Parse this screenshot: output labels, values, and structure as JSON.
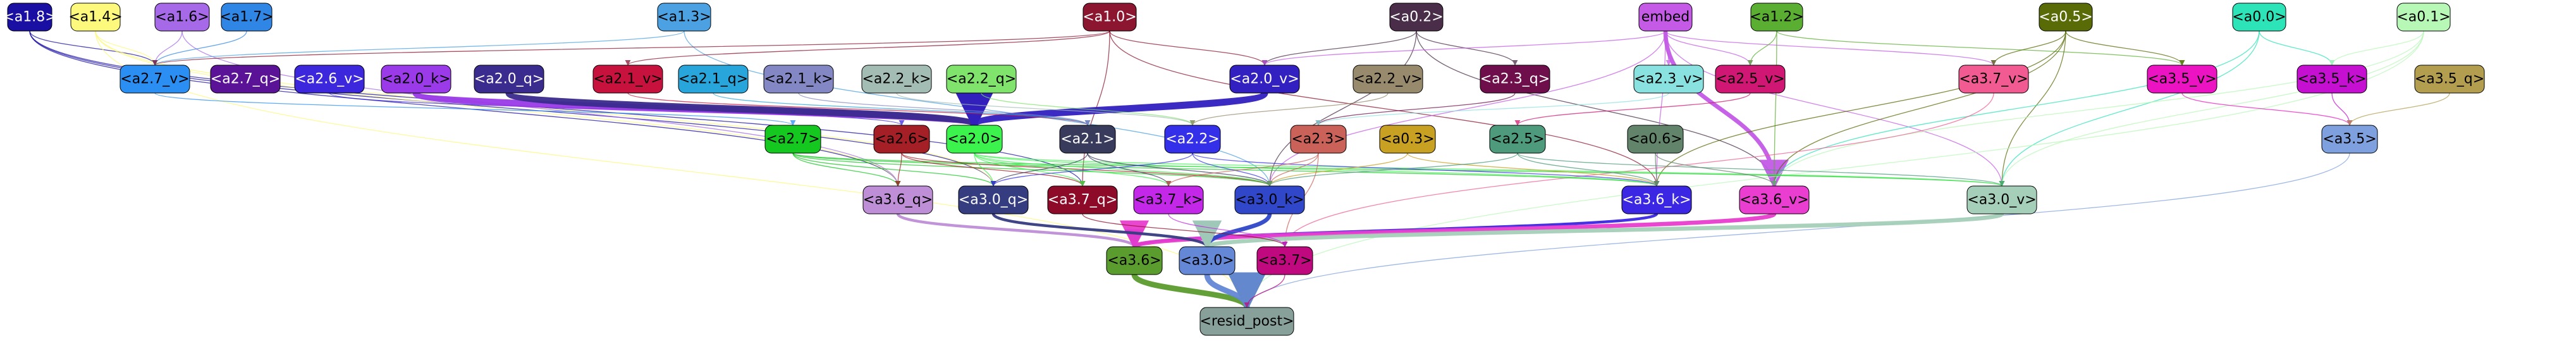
{
  "nodes": [
    {
      "id": "a1_8",
      "label": "<a1.8>",
      "fill": "#1a0fa3",
      "text": "#ffffff"
    },
    {
      "id": "a1_4",
      "label": "<a1.4>",
      "fill": "#fdf97c",
      "text": "#000000"
    },
    {
      "id": "a1_6",
      "label": "<a1.6>",
      "fill": "#a66ae8",
      "text": "#000000"
    },
    {
      "id": "a1_7",
      "label": "<a1.7>",
      "fill": "#2f86e4",
      "text": "#000000"
    },
    {
      "id": "a1_3",
      "label": "<a1.3>",
      "fill": "#4ba1e1",
      "text": "#000000"
    },
    {
      "id": "a1_0",
      "label": "<a1.0>",
      "fill": "#8c1530",
      "text": "#ffffff"
    },
    {
      "id": "a0_2",
      "label": "<a0.2>",
      "fill": "#4a2e49",
      "text": "#ffffff"
    },
    {
      "id": "embed",
      "label": "embed",
      "fill": "#c45ae6",
      "text": "#000000"
    },
    {
      "id": "a1_2",
      "label": "<a1.2>",
      "fill": "#5aae31",
      "text": "#000000"
    },
    {
      "id": "a0_5",
      "label": "<a0.5>",
      "fill": "#596b07",
      "text": "#ffffff"
    },
    {
      "id": "a0_0",
      "label": "<a0.0>",
      "fill": "#2ce4b8",
      "text": "#000000"
    },
    {
      "id": "a0_1",
      "label": "<a0.1>",
      "fill": "#b7f8b6",
      "text": "#000000"
    },
    {
      "id": "a2_7_v",
      "label": "<a2.7_v>",
      "fill": "#2a8ef2",
      "text": "#000000"
    },
    {
      "id": "a2_7_q",
      "label": "<a2.7_q>",
      "fill": "#5a1396",
      "text": "#ffffff"
    },
    {
      "id": "a2_6_v",
      "label": "<a2.6_v>",
      "fill": "#3c27dd",
      "text": "#ffffff"
    },
    {
      "id": "a2_0_k",
      "label": "<a2.0_k>",
      "fill": "#9a3ae8",
      "text": "#000000"
    },
    {
      "id": "a2_0_q",
      "label": "<a2.0_q>",
      "fill": "#3a2b8e",
      "text": "#ffffff"
    },
    {
      "id": "a2_1_v",
      "label": "<a2.1_v>",
      "fill": "#c8123e",
      "text": "#000000"
    },
    {
      "id": "a2_1_q",
      "label": "<a2.1_q>",
      "fill": "#28a6dc",
      "text": "#000000"
    },
    {
      "id": "a2_1_k",
      "label": "<a2.1_k>",
      "fill": "#8388c4",
      "text": "#000000"
    },
    {
      "id": "a2_2_k",
      "label": "<a2.2_k>",
      "fill": "#a3bdb5",
      "text": "#000000"
    },
    {
      "id": "a2_2_q",
      "label": "<a2.2_q>",
      "fill": "#7fe36c",
      "text": "#000000"
    },
    {
      "id": "a2_0_v",
      "label": "<a2.0_v>",
      "fill": "#3220c0",
      "text": "#ffffff"
    },
    {
      "id": "a2_2_v",
      "label": "<a2.2_v>",
      "fill": "#988a6c",
      "text": "#000000"
    },
    {
      "id": "a2_3_q",
      "label": "<a2.3_q>",
      "fill": "#6e0e4a",
      "text": "#ffffff"
    },
    {
      "id": "a2_3_v",
      "label": "<a2.3_v>",
      "fill": "#8ae2e0",
      "text": "#000000"
    },
    {
      "id": "a2_5_v",
      "label": "<a2.5_v>",
      "fill": "#d01774",
      "text": "#000000"
    },
    {
      "id": "a3_7_v",
      "label": "<a3.7_v>",
      "fill": "#f15b92",
      "text": "#000000"
    },
    {
      "id": "a3_5_v",
      "label": "<a3.5_v>",
      "fill": "#ec14c2",
      "text": "#000000"
    },
    {
      "id": "a3_5_k",
      "label": "<a3.5_k>",
      "fill": "#c510d1",
      "text": "#000000"
    },
    {
      "id": "a3_5_q",
      "label": "<a3.5_q>",
      "fill": "#b39e50",
      "text": "#000000"
    },
    {
      "id": "a2_7",
      "label": "<a2.7>",
      "fill": "#15c820",
      "text": "#000000"
    },
    {
      "id": "a2_6",
      "label": "<a2.6>",
      "fill": "#a51f26",
      "text": "#000000"
    },
    {
      "id": "a2_0",
      "label": "<a2.0>",
      "fill": "#3cf34e",
      "text": "#000000"
    },
    {
      "id": "a2_1",
      "label": "<a2.1>",
      "fill": "#393b5d",
      "text": "#ffffff"
    },
    {
      "id": "a2_2",
      "label": "<a2.2>",
      "fill": "#3430ea",
      "text": "#ffffff"
    },
    {
      "id": "a2_3",
      "label": "<a2.3>",
      "fill": "#cb625a",
      "text": "#000000"
    },
    {
      "id": "a0_3",
      "label": "<a0.3>",
      "fill": "#c9a122",
      "text": "#000000"
    },
    {
      "id": "a2_5",
      "label": "<a2.5>",
      "fill": "#4d9a7c",
      "text": "#000000"
    },
    {
      "id": "a0_6",
      "label": "<a0.6>",
      "fill": "#61846a",
      "text": "#000000"
    },
    {
      "id": "a3_5",
      "label": "<a3.5>",
      "fill": "#7fa0de",
      "text": "#000000"
    },
    {
      "id": "a3_6_q",
      "label": "<a3.6_q>",
      "fill": "#be8ed6",
      "text": "#000000"
    },
    {
      "id": "a3_0_q",
      "label": "<a3.0_q>",
      "fill": "#353c80",
      "text": "#ffffff"
    },
    {
      "id": "a3_7_q",
      "label": "<a3.7_q>",
      "fill": "#8e0a29",
      "text": "#ffffff"
    },
    {
      "id": "a3_7_k",
      "label": "<a3.7_k>",
      "fill": "#c328e8",
      "text": "#000000"
    },
    {
      "id": "a3_0_k",
      "label": "<a3.0_k>",
      "fill": "#2f47c8",
      "text": "#000000"
    },
    {
      "id": "a3_6_k",
      "label": "<a3.6_k>",
      "fill": "#3b27e3",
      "text": "#ffffff"
    },
    {
      "id": "a3_6_v",
      "label": "<a3.6_v>",
      "fill": "#e93ecf",
      "text": "#000000"
    },
    {
      "id": "a3_0_v",
      "label": "<a3.0_v>",
      "fill": "#a5cfb9",
      "text": "#000000"
    },
    {
      "id": "a3_6",
      "label": "<a3.6>",
      "fill": "#5b9c2e",
      "text": "#000000"
    },
    {
      "id": "a3_0",
      "label": "<a3.0>",
      "fill": "#6487d6",
      "text": "#000000"
    },
    {
      "id": "a3_7",
      "label": "<a3.7>",
      "fill": "#c0097f",
      "text": "#000000"
    },
    {
      "id": "resid_post",
      "label": "<resid_post>",
      "fill": "#87a19a",
      "text": "#000000"
    }
  ],
  "edges": [
    {
      "from": "a1_8",
      "to": "a2_7_v",
      "color": "#1a0fa3",
      "weight": 1
    },
    {
      "from": "a1_8",
      "to": "a3_6_q",
      "color": "#1a0fa3",
      "weight": 1
    },
    {
      "from": "a1_8",
      "to": "a3_0_q",
      "color": "#1a0fa3",
      "weight": 1
    },
    {
      "from": "a1_8",
      "to": "a3_7_q",
      "color": "#1a0fa3",
      "weight": 1
    },
    {
      "from": "a1_4",
      "to": "a2_7_v",
      "color": "#fdf97c",
      "weight": 1
    },
    {
      "from": "a1_4",
      "to": "a3_6_q",
      "color": "#fdf97c",
      "weight": 1
    },
    {
      "from": "a1_4",
      "to": "a3_0_q",
      "color": "#fdf97c",
      "weight": 1
    },
    {
      "from": "a1_4",
      "to": "resid_post",
      "color": "#fdf97c",
      "weight": 1
    },
    {
      "from": "a1_6",
      "to": "a2_7_v",
      "color": "#a66ae8",
      "weight": 1
    },
    {
      "from": "a1_6",
      "to": "a3_6_q",
      "color": "#a66ae8",
      "weight": 1
    },
    {
      "from": "a1_7",
      "to": "a2_7_v",
      "color": "#2f86e4",
      "weight": 1
    },
    {
      "from": "a1_3",
      "to": "a2_7_v",
      "color": "#4ba1e1",
      "weight": 1
    },
    {
      "from": "a1_3",
      "to": "a3_0_k",
      "color": "#4ba1e1",
      "weight": 1
    },
    {
      "from": "a1_0",
      "to": "a2_7_v",
      "color": "#8c1530",
      "weight": 1
    },
    {
      "from": "a1_0",
      "to": "a2_1_v",
      "color": "#8c1530",
      "weight": 1
    },
    {
      "from": "a1_0",
      "to": "a2_0_v",
      "color": "#8c1530",
      "weight": 1
    },
    {
      "from": "a1_0",
      "to": "a3_7_q",
      "color": "#8c1530",
      "weight": 1
    },
    {
      "from": "a1_0",
      "to": "a3_6_k",
      "color": "#8c1530",
      "weight": 1
    },
    {
      "from": "a0_2",
      "to": "a2_0_v",
      "color": "#4a2e49",
      "weight": 1
    },
    {
      "from": "a0_2",
      "to": "a2_3_q",
      "color": "#4a2e49",
      "weight": 1
    },
    {
      "from": "a0_2",
      "to": "a3_6_v",
      "color": "#4a2e49",
      "weight": 1
    },
    {
      "from": "a0_2",
      "to": "a3_0_k",
      "color": "#4a2e49",
      "weight": 1
    },
    {
      "from": "embed",
      "to": "a2_0_v",
      "color": "#c45ae6",
      "weight": 1
    },
    {
      "from": "embed",
      "to": "a2_3_v",
      "color": "#c45ae6",
      "weight": 1
    },
    {
      "from": "embed",
      "to": "a2_5_v",
      "color": "#c45ae6",
      "weight": 1
    },
    {
      "from": "embed",
      "to": "a3_7_v",
      "color": "#c45ae6",
      "weight": 1
    },
    {
      "from": "embed",
      "to": "a3_6_v",
      "color": "#c45ae6",
      "weight": 3
    },
    {
      "from": "embed",
      "to": "a3_0_v",
      "color": "#c45ae6",
      "weight": 1
    },
    {
      "from": "embed",
      "to": "a3_6_k",
      "color": "#c45ae6",
      "weight": 1
    },
    {
      "from": "embed",
      "to": "a3_0_k",
      "color": "#c45ae6",
      "weight": 1
    },
    {
      "from": "a1_2",
      "to": "a2_5_v",
      "color": "#5aae31",
      "weight": 1
    },
    {
      "from": "a1_2",
      "to": "a3_5_v",
      "color": "#5aae31",
      "weight": 1
    },
    {
      "from": "a1_2",
      "to": "a3_6_v",
      "color": "#5aae31",
      "weight": 1
    },
    {
      "from": "a0_5",
      "to": "a3_7_v",
      "color": "#596b07",
      "weight": 1
    },
    {
      "from": "a0_5",
      "to": "a3_5_v",
      "color": "#596b07",
      "weight": 1
    },
    {
      "from": "a0_5",
      "to": "a3_6_v",
      "color": "#596b07",
      "weight": 1
    },
    {
      "from": "a0_5",
      "to": "a3_0_v",
      "color": "#596b07",
      "weight": 1
    },
    {
      "from": "a0_5",
      "to": "a3_6_k",
      "color": "#596b07",
      "weight": 1
    },
    {
      "from": "a0_0",
      "to": "a3_5_k",
      "color": "#2ce4b8",
      "weight": 1
    },
    {
      "from": "a0_0",
      "to": "a3_0_v",
      "color": "#2ce4b8",
      "weight": 1
    },
    {
      "from": "a0_0",
      "to": "a3_6_v",
      "color": "#2ce4b8",
      "weight": 1
    },
    {
      "from": "a0_1",
      "to": "a3_5_k",
      "color": "#b7f8b6",
      "weight": 1
    },
    {
      "from": "a0_1",
      "to": "a3_0_v",
      "color": "#b7f8b6",
      "weight": 1
    },
    {
      "from": "a0_1",
      "to": "a3_6_v",
      "color": "#b7f8b6",
      "weight": 1
    },
    {
      "from": "a0_1",
      "to": "resid_post",
      "color": "#b7f8b6",
      "weight": 1
    },
    {
      "from": "a2_7_v",
      "to": "a2_7",
      "color": "#2a8ef2",
      "weight": 1
    },
    {
      "from": "a2_6_v",
      "to": "a2_6",
      "color": "#3c27dd",
      "weight": 1
    },
    {
      "from": "a2_0_k",
      "to": "a2_0",
      "color": "#9a3ae8",
      "weight": 5
    },
    {
      "from": "a2_0_q",
      "to": "a2_0",
      "color": "#3a2b8e",
      "weight": 5
    },
    {
      "from": "a2_0_v",
      "to": "a2_0",
      "color": "#3220c0",
      "weight": 5
    },
    {
      "from": "a2_1_v",
      "to": "a2_1",
      "color": "#c8123e",
      "weight": 1
    },
    {
      "from": "a2_1_q",
      "to": "a2_1",
      "color": "#28a6dc",
      "weight": 1
    },
    {
      "from": "a2_1_k",
      "to": "a2_1",
      "color": "#8388c4",
      "weight": 1
    },
    {
      "from": "a2_2_k",
      "to": "a2_2",
      "color": "#a3bdb5",
      "weight": 1
    },
    {
      "from": "a2_2_q",
      "to": "a2_2",
      "color": "#7fe36c",
      "weight": 1
    },
    {
      "from": "a2_2_v",
      "to": "a2_2",
      "color": "#988a6c",
      "weight": 1
    },
    {
      "from": "a2_3_q",
      "to": "a2_3",
      "color": "#6e0e4a",
      "weight": 1
    },
    {
      "from": "a2_3_v",
      "to": "a2_3",
      "color": "#8ae2e0",
      "weight": 1
    },
    {
      "from": "a2_5_v",
      "to": "a2_5",
      "color": "#d01774",
      "weight": 1
    },
    {
      "from": "a3_5_v",
      "to": "a3_5",
      "color": "#ec14c2",
      "weight": 1
    },
    {
      "from": "a3_5_k",
      "to": "a3_5",
      "color": "#c510d1",
      "weight": 1
    },
    {
      "from": "a3_5_q",
      "to": "a3_5",
      "color": "#b39e50",
      "weight": 1
    },
    {
      "from": "a3_7_v",
      "to": "a3_7",
      "color": "#f15b92",
      "weight": 1
    },
    {
      "from": "a2_7",
      "to": "a3_6_q",
      "color": "#15c820",
      "weight": 1
    },
    {
      "from": "a2_7",
      "to": "a3_0_q",
      "color": "#15c820",
      "weight": 1
    },
    {
      "from": "a2_7",
      "to": "a3_0_k",
      "color": "#15c820",
      "weight": 1
    },
    {
      "from": "a2_7",
      "to": "a3_6_k",
      "color": "#15c820",
      "weight": 1
    },
    {
      "from": "a2_7",
      "to": "a3_0_v",
      "color": "#15c820",
      "weight": 1
    },
    {
      "from": "a2_6",
      "to": "a3_6_q",
      "color": "#a51f26",
      "weight": 1
    },
    {
      "from": "a2_6",
      "to": "a3_7_q",
      "color": "#a51f26",
      "weight": 1
    },
    {
      "from": "a2_6",
      "to": "a3_0_k",
      "color": "#a51f26",
      "weight": 1
    },
    {
      "from": "a2_0",
      "to": "a3_0_q",
      "color": "#3cf34e",
      "weight": 1
    },
    {
      "from": "a2_0",
      "to": "a3_7_q",
      "color": "#3cf34e",
      "weight": 1
    },
    {
      "from": "a2_0",
      "to": "a3_7_k",
      "color": "#3cf34e",
      "weight": 1
    },
    {
      "from": "a2_0",
      "to": "a3_0_k",
      "color": "#3cf34e",
      "weight": 1
    },
    {
      "from": "a2_0",
      "to": "a3_6_k",
      "color": "#3cf34e",
      "weight": 1
    },
    {
      "from": "a2_0",
      "to": "a3_0_v",
      "color": "#3cf34e",
      "weight": 1
    },
    {
      "from": "a2_1",
      "to": "a3_0_q",
      "color": "#393b5d",
      "weight": 1
    },
    {
      "from": "a2_1",
      "to": "a3_7_k",
      "color": "#393b5d",
      "weight": 1
    },
    {
      "from": "a2_1",
      "to": "a3_0_k",
      "color": "#393b5d",
      "weight": 1
    },
    {
      "from": "a2_2",
      "to": "a3_0_q",
      "color": "#3430ea",
      "weight": 1
    },
    {
      "from": "a2_2",
      "to": "a3_0_k",
      "color": "#3430ea",
      "weight": 1
    },
    {
      "from": "a2_2",
      "to": "a3_6_k",
      "color": "#3430ea",
      "weight": 1
    },
    {
      "from": "a2_3",
      "to": "a3_7_k",
      "color": "#cb625a",
      "weight": 1
    },
    {
      "from": "a2_3",
      "to": "a3_0_k",
      "color": "#cb625a",
      "weight": 1
    },
    {
      "from": "a2_3",
      "to": "a3_7",
      "color": "#cb625a",
      "weight": 1
    },
    {
      "from": "a0_3",
      "to": "a3_0_k",
      "color": "#c9a122",
      "weight": 1
    },
    {
      "from": "a0_3",
      "to": "a3_6_k",
      "color": "#c9a122",
      "weight": 1
    },
    {
      "from": "a2_5",
      "to": "a3_0_k",
      "color": "#4d9a7c",
      "weight": 1
    },
    {
      "from": "a2_5",
      "to": "a3_6_k",
      "color": "#4d9a7c",
      "weight": 1
    },
    {
      "from": "a2_5",
      "to": "a3_0_v",
      "color": "#4d9a7c",
      "weight": 1
    },
    {
      "from": "a0_6",
      "to": "a3_6_k",
      "color": "#61846a",
      "weight": 1
    },
    {
      "from": "a0_6",
      "to": "a3_6_v",
      "color": "#61846a",
      "weight": 1
    },
    {
      "from": "a3_5",
      "to": "resid_post",
      "color": "#7fa0de",
      "weight": 1
    },
    {
      "from": "a3_6_q",
      "to": "a3_6",
      "color": "#be8ed6",
      "weight": 2
    },
    {
      "from": "a3_6_k",
      "to": "a3_6",
      "color": "#3b27e3",
      "weight": 2
    },
    {
      "from": "a3_6_v",
      "to": "a3_6",
      "color": "#e93ecf",
      "weight": 3
    },
    {
      "from": "a3_0_q",
      "to": "a3_0",
      "color": "#353c80",
      "weight": 2
    },
    {
      "from": "a3_0_k",
      "to": "a3_0",
      "color": "#2f47c8",
      "weight": 3
    },
    {
      "from": "a3_0_v",
      "to": "a3_0",
      "color": "#a5cfb9",
      "weight": 3
    },
    {
      "from": "a3_7_q",
      "to": "a3_7",
      "color": "#8e0a29",
      "weight": 1
    },
    {
      "from": "a3_7_k",
      "to": "a3_7",
      "color": "#c328e8",
      "weight": 1
    },
    {
      "from": "a3_6",
      "to": "resid_post",
      "color": "#5b9c2e",
      "weight": 4
    },
    {
      "from": "a3_0",
      "to": "resid_post",
      "color": "#6487d6",
      "weight": 4
    },
    {
      "from": "a3_7",
      "to": "resid_post",
      "color": "#c0097f",
      "weight": 1
    }
  ]
}
